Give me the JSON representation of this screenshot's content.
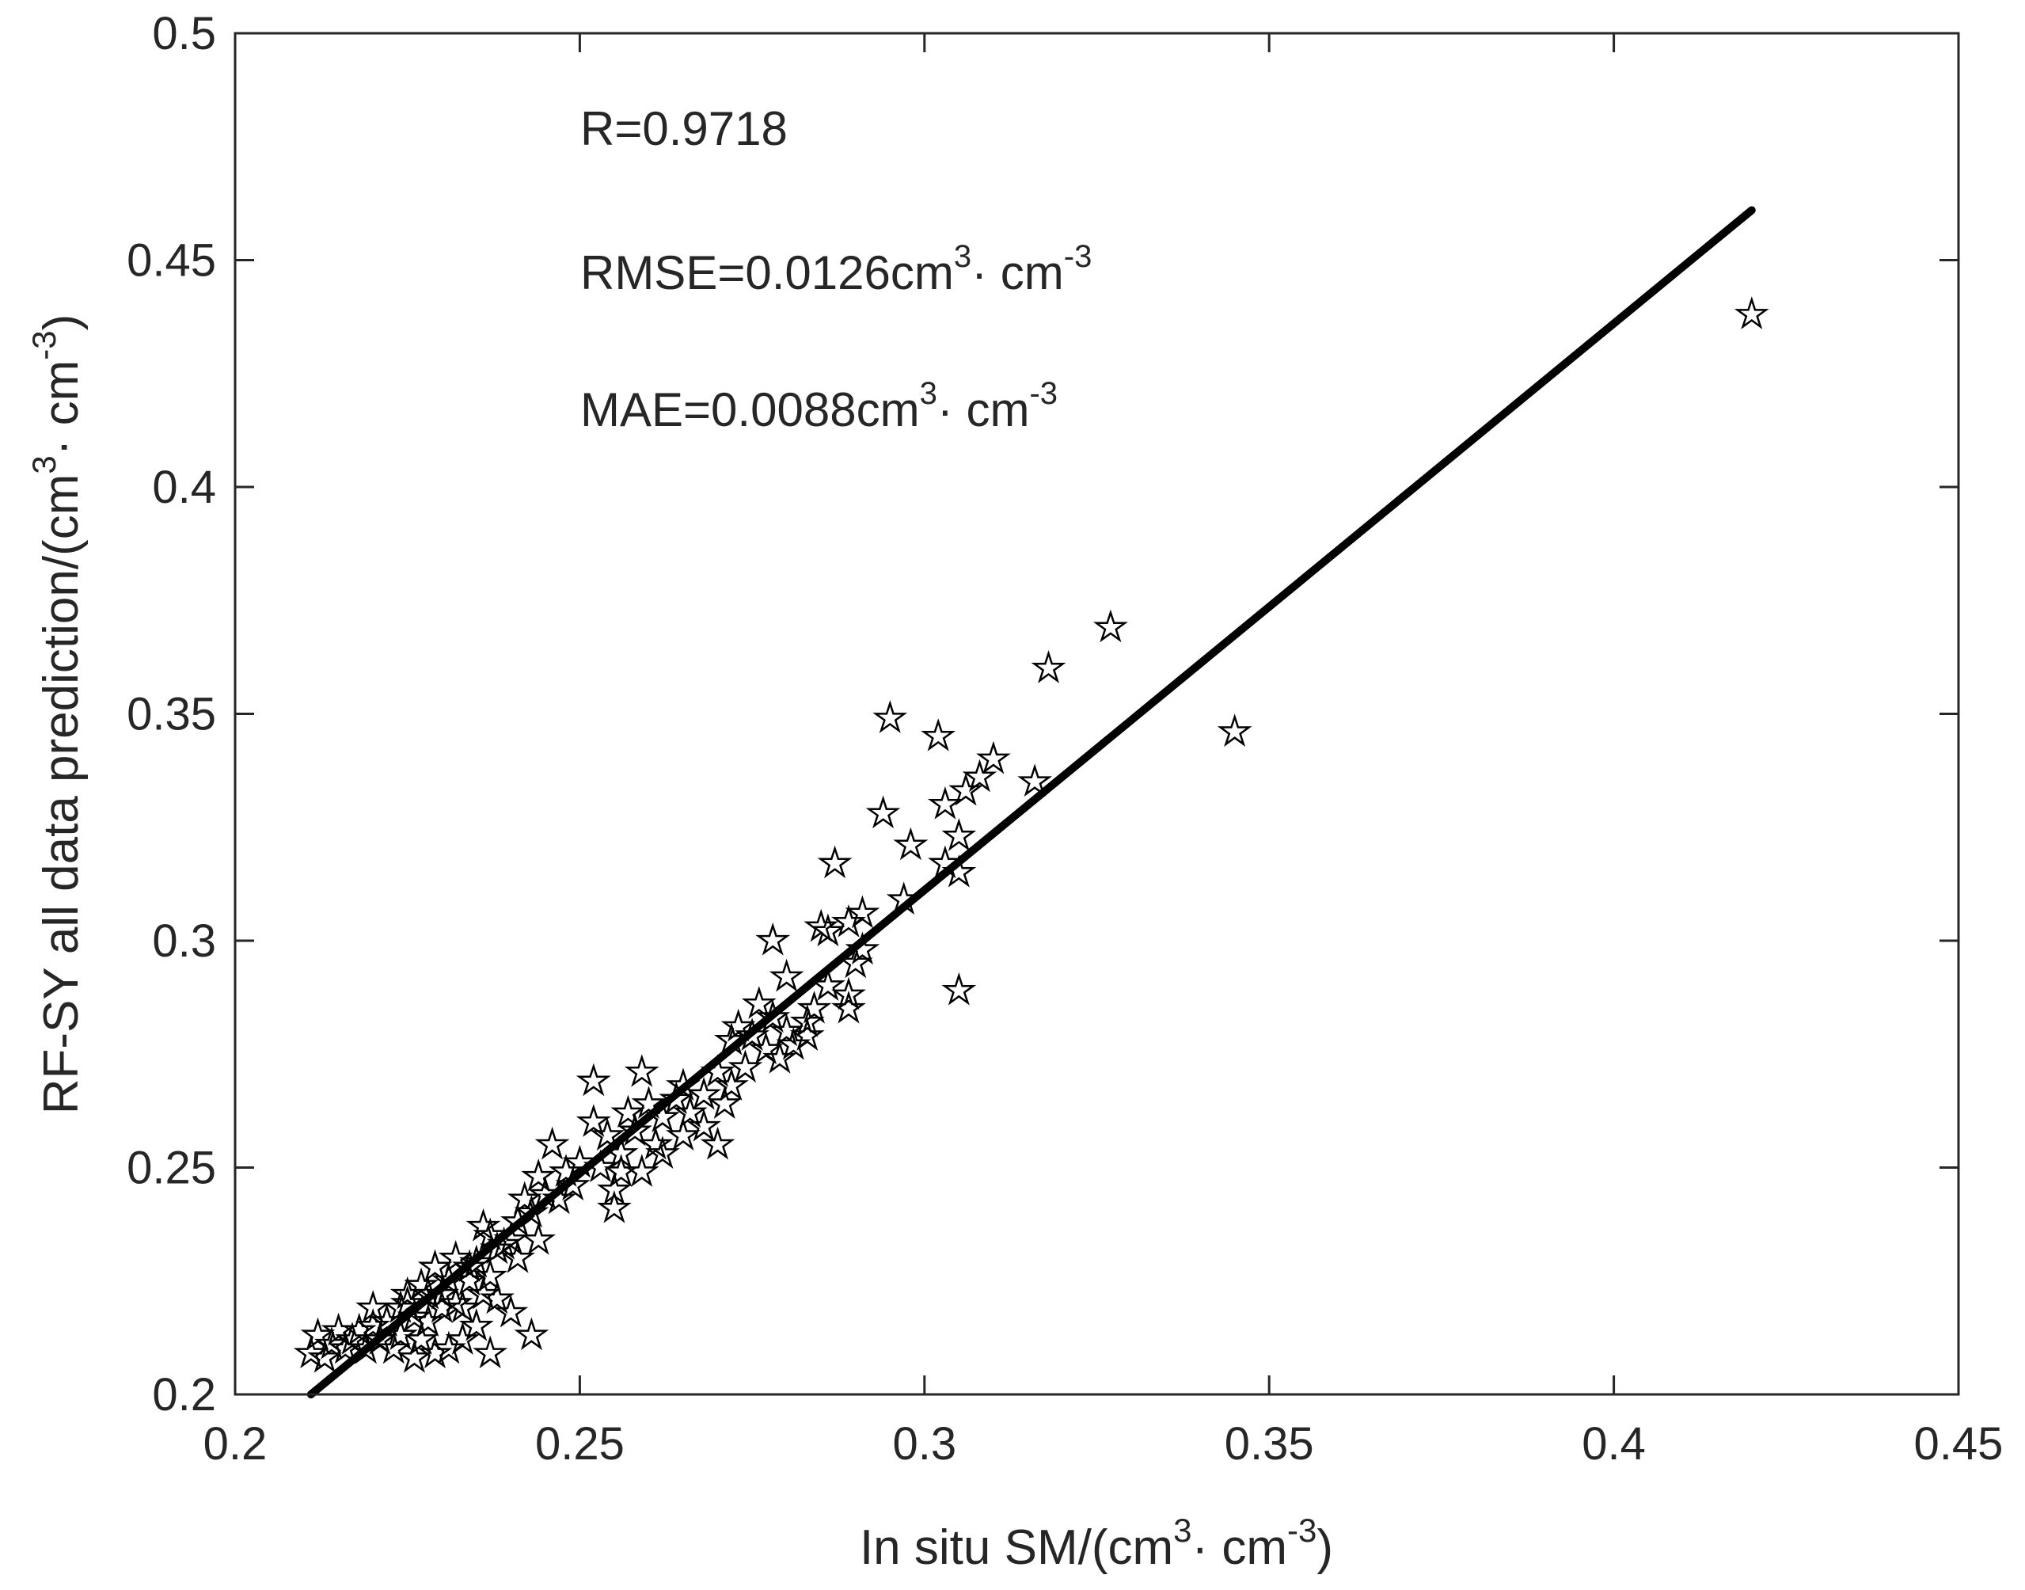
{
  "chart_data": {
    "type": "scatter",
    "xlabel": "In situ SM/(cm",
    "xlabel_sup1": "3",
    "xlabel_mid": "· cm",
    "xlabel_sup2": "-3",
    "xlabel_end": ")",
    "ylabel": "RF-SY all data prediction/(cm",
    "ylabel_sup1": "3",
    "ylabel_mid": "· cm",
    "ylabel_sup2": "-3",
    "ylabel_end": ")",
    "xlim": [
      0.2,
      0.45
    ],
    "ylim": [
      0.2,
      0.5
    ],
    "xticks": [
      0.2,
      0.25,
      0.3,
      0.35,
      0.4,
      0.45
    ],
    "yticks": [
      0.2,
      0.25,
      0.3,
      0.35,
      0.4,
      0.45,
      0.5
    ],
    "xtick_labels": [
      "0.2",
      "0.25",
      "0.3",
      "0.35",
      "0.4",
      "0.45"
    ],
    "ytick_labels": [
      "0.2",
      "0.25",
      "0.3",
      "0.35",
      "0.4",
      "0.45",
      "0.5"
    ],
    "grid": false,
    "marker": "pentagram",
    "marker_color": "#000000",
    "stats": {
      "r_text": "R=0.9718",
      "rmse_text": "RMSE=0.0126cm",
      "rmse_sup1": "3",
      "rmse_mid": "· cm",
      "rmse_sup2": "-3",
      "mae_text": "MAE=0.0088cm",
      "mae_sup1": "3",
      "mae_mid": "· cm",
      "mae_sup2": "-3"
    },
    "fit_line": {
      "x": [
        0.211,
        0.42
      ],
      "y": [
        0.2,
        0.461
      ],
      "color": "#000000"
    },
    "series": [
      {
        "name": "samples",
        "points": [
          [
            0.42,
            0.438
          ],
          [
            0.345,
            0.346
          ],
          [
            0.327,
            0.369
          ],
          [
            0.318,
            0.36
          ],
          [
            0.316,
            0.335
          ],
          [
            0.295,
            0.349
          ],
          [
            0.302,
            0.345
          ],
          [
            0.31,
            0.34
          ],
          [
            0.308,
            0.336
          ],
          [
            0.306,
            0.333
          ],
          [
            0.303,
            0.33
          ],
          [
            0.294,
            0.328
          ],
          [
            0.305,
            0.323
          ],
          [
            0.298,
            0.321
          ],
          [
            0.303,
            0.317
          ],
          [
            0.287,
            0.317
          ],
          [
            0.305,
            0.315
          ],
          [
            0.297,
            0.309
          ],
          [
            0.291,
            0.306
          ],
          [
            0.289,
            0.304
          ],
          [
            0.285,
            0.303
          ],
          [
            0.286,
            0.302
          ],
          [
            0.278,
            0.3
          ],
          [
            0.291,
            0.298
          ],
          [
            0.29,
            0.295
          ],
          [
            0.28,
            0.292
          ],
          [
            0.305,
            0.289
          ],
          [
            0.289,
            0.288
          ],
          [
            0.289,
            0.285
          ],
          [
            0.284,
            0.285
          ],
          [
            0.283,
            0.282
          ],
          [
            0.278,
            0.283
          ],
          [
            0.276,
            0.286
          ],
          [
            0.28,
            0.28
          ],
          [
            0.281,
            0.277
          ],
          [
            0.279,
            0.274
          ],
          [
            0.275,
            0.279
          ],
          [
            0.273,
            0.281
          ],
          [
            0.272,
            0.278
          ],
          [
            0.277,
            0.276
          ],
          [
            0.274,
            0.272
          ],
          [
            0.272,
            0.268
          ],
          [
            0.27,
            0.271
          ],
          [
            0.268,
            0.266
          ],
          [
            0.271,
            0.264
          ],
          [
            0.266,
            0.262
          ],
          [
            0.268,
            0.259
          ],
          [
            0.27,
            0.255
          ],
          [
            0.264,
            0.265
          ],
          [
            0.262,
            0.261
          ],
          [
            0.265,
            0.268
          ],
          [
            0.259,
            0.271
          ],
          [
            0.26,
            0.264
          ],
          [
            0.258,
            0.258
          ],
          [
            0.262,
            0.253
          ],
          [
            0.259,
            0.249
          ],
          [
            0.256,
            0.253
          ],
          [
            0.254,
            0.257
          ],
          [
            0.252,
            0.269
          ],
          [
            0.252,
            0.26
          ],
          [
            0.253,
            0.25
          ],
          [
            0.255,
            0.245
          ],
          [
            0.255,
            0.241
          ],
          [
            0.25,
            0.251
          ],
          [
            0.248,
            0.249
          ],
          [
            0.246,
            0.255
          ],
          [
            0.244,
            0.248
          ],
          [
            0.245,
            0.244
          ],
          [
            0.242,
            0.243
          ],
          [
            0.244,
            0.234
          ],
          [
            0.241,
            0.238
          ],
          [
            0.24,
            0.234
          ],
          [
            0.241,
            0.23
          ],
          [
            0.238,
            0.232
          ],
          [
            0.236,
            0.237
          ],
          [
            0.235,
            0.229
          ],
          [
            0.237,
            0.226
          ],
          [
            0.234,
            0.225
          ],
          [
            0.236,
            0.222
          ],
          [
            0.233,
            0.219
          ],
          [
            0.231,
            0.225
          ],
          [
            0.229,
            0.228
          ],
          [
            0.228,
            0.222
          ],
          [
            0.23,
            0.219
          ],
          [
            0.227,
            0.224
          ],
          [
            0.225,
            0.22
          ],
          [
            0.226,
            0.217
          ],
          [
            0.224,
            0.213
          ],
          [
            0.222,
            0.216
          ],
          [
            0.22,
            0.219
          ],
          [
            0.218,
            0.214
          ],
          [
            0.217,
            0.212
          ],
          [
            0.219,
            0.21
          ],
          [
            0.215,
            0.214
          ],
          [
            0.214,
            0.211
          ],
          [
            0.212,
            0.213
          ],
          [
            0.211,
            0.209
          ],
          [
            0.213,
            0.208
          ],
          [
            0.216,
            0.21
          ],
          [
            0.221,
            0.212
          ],
          [
            0.223,
            0.21
          ],
          [
            0.226,
            0.208
          ],
          [
            0.229,
            0.209
          ],
          [
            0.231,
            0.21
          ],
          [
            0.233,
            0.212
          ],
          [
            0.235,
            0.215
          ],
          [
            0.237,
            0.209
          ],
          [
            0.24,
            0.218
          ],
          [
            0.243,
            0.213
          ],
          [
            0.238,
            0.221
          ],
          [
            0.232,
            0.22
          ],
          [
            0.228,
            0.216
          ],
          [
            0.224,
            0.219
          ],
          [
            0.227,
            0.212
          ],
          [
            0.22,
            0.215
          ],
          [
            0.283,
            0.279
          ],
          [
            0.286,
            0.29
          ],
          [
            0.265,
            0.257
          ],
          [
            0.261,
            0.255
          ],
          [
            0.257,
            0.262
          ],
          [
            0.256,
            0.249
          ],
          [
            0.249,
            0.246
          ],
          [
            0.247,
            0.243
          ],
          [
            0.243,
            0.24
          ],
          [
            0.239,
            0.233
          ],
          [
            0.237,
            0.235
          ],
          [
            0.234,
            0.228
          ],
          [
            0.232,
            0.23
          ],
          [
            0.23,
            0.222
          ],
          [
            0.225,
            0.222
          ]
        ]
      }
    ]
  }
}
